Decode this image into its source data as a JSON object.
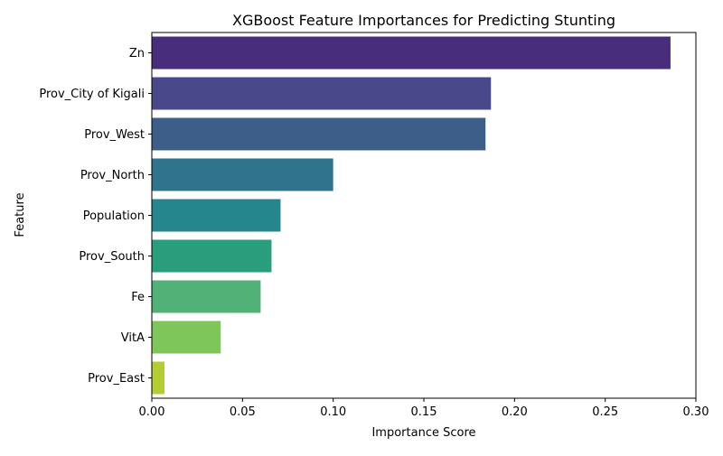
{
  "chart_data": {
    "type": "bar",
    "orientation": "horizontal",
    "title": "XGBoost Feature Importances for Predicting Stunting",
    "xlabel": "Importance Score",
    "ylabel": "Feature",
    "categories": [
      "Zn",
      "Prov_City of Kigali",
      "Prov_West",
      "Prov_North",
      "Population",
      "Prov_South",
      "Fe",
      "VitA",
      "Prov_East"
    ],
    "values": [
      0.286,
      0.187,
      0.184,
      0.1,
      0.071,
      0.066,
      0.06,
      0.038,
      0.007
    ],
    "xlim": [
      0,
      0.3
    ],
    "xticks": [
      "0.00",
      "0.05",
      "0.10",
      "0.15",
      "0.20",
      "0.25",
      "0.30"
    ],
    "grid": false,
    "colors": [
      "#472d7b",
      "#48488a",
      "#3e5e8a",
      "#2f738d",
      "#25868e",
      "#2a9d7c",
      "#52b176",
      "#7ec55a",
      "#b5cc34"
    ]
  }
}
